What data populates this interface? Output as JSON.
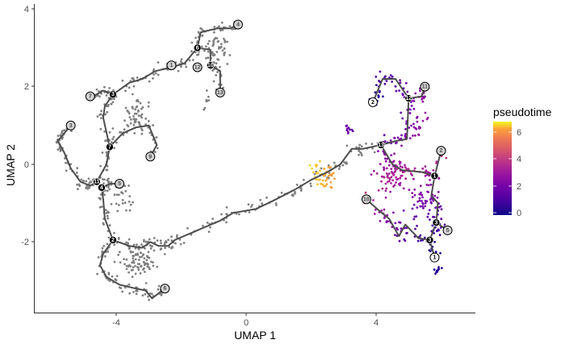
{
  "chart_data": {
    "type": "scatter",
    "title": "",
    "xlabel": "UMAP 1",
    "ylabel": "UMAP 2",
    "xlim": [
      -6.5,
      7
    ],
    "ylim": [
      -3.8,
      4.1
    ],
    "x_ticks": [
      -4,
      0,
      4
    ],
    "y_ticks": [
      -2,
      0,
      2,
      4
    ],
    "grid": false,
    "legend": {
      "title": "pseudotime",
      "type": "colorbar",
      "position": "right",
      "range": [
        0,
        6.8
      ],
      "ticks": [
        0,
        2,
        4,
        6
      ],
      "colors": [
        "#0d0887",
        "#6a00a8",
        "#b12a90",
        "#e16462",
        "#fca636",
        "#f0f921"
      ]
    },
    "series": [
      {
        "name": "uncolored cells (grey)",
        "color": "#7f7f7f",
        "region": "left trajectory, UMAP1 -6..1"
      },
      {
        "name": "colored by pseudotime",
        "region": "right trajectory, UMAP1 1.5..6.3"
      }
    ],
    "trajectory_nodes": {
      "grey_labels": [
        {
          "label": "1",
          "x": -2.3,
          "y": 2.55,
          "kind": "leaf"
        },
        {
          "label": "4",
          "x": -0.25,
          "y": 3.6,
          "kind": "leaf"
        },
        {
          "label": "12",
          "x": -1.5,
          "y": 2.5,
          "kind": "leaf"
        },
        {
          "label": "13",
          "x": -0.8,
          "y": 1.85,
          "kind": "leaf"
        },
        {
          "label": "7",
          "x": -4.8,
          "y": 1.75,
          "kind": "leaf"
        },
        {
          "label": "3",
          "x": -5.4,
          "y": 1.0,
          "kind": "leaf"
        },
        {
          "label": "9",
          "x": -2.95,
          "y": 0.2,
          "kind": "leaf"
        },
        {
          "label": "5",
          "x": -3.9,
          "y": -0.5,
          "kind": "leaf"
        },
        {
          "label": "6",
          "x": -2.5,
          "y": -3.2,
          "kind": "leaf"
        },
        {
          "label": "11",
          "x": 5.5,
          "y": 2.0,
          "kind": "leaf"
        },
        {
          "label": "2",
          "x": 6.0,
          "y": 0.35,
          "kind": "leaf"
        },
        {
          "label": "5",
          "x": 6.2,
          "y": -1.7,
          "kind": "leaf"
        },
        {
          "label": "10",
          "x": 3.7,
          "y": -0.9,
          "kind": "leaf"
        }
      ],
      "white_labels": [
        {
          "label": "2",
          "x": 3.9,
          "y": 1.6,
          "kind": "root"
        },
        {
          "label": "1",
          "x": 5.8,
          "y": -2.4,
          "kind": "root"
        }
      ],
      "black_labels": [
        {
          "label": "6",
          "x": -1.5,
          "y": 3.0,
          "kind": "branch"
        },
        {
          "label": "10",
          "x": -1.1,
          "y": 2.55,
          "kind": "branch"
        },
        {
          "label": "3",
          "x": -4.1,
          "y": 1.8,
          "kind": "branch"
        },
        {
          "label": "7",
          "x": -4.2,
          "y": 0.45,
          "kind": "branch"
        },
        {
          "label": "11",
          "x": -4.6,
          "y": -0.45,
          "kind": "branch"
        },
        {
          "label": "4",
          "x": -4.45,
          "y": -0.6,
          "kind": "branch"
        },
        {
          "label": "2",
          "x": -4.1,
          "y": -1.95,
          "kind": "branch"
        },
        {
          "label": "12",
          "x": 5.0,
          "y": 1.7,
          "kind": "branch"
        },
        {
          "label": "13",
          "x": 4.15,
          "y": 0.5,
          "kind": "branch"
        },
        {
          "label": "1",
          "x": 5.8,
          "y": -0.3,
          "kind": "branch"
        },
        {
          "label": "3",
          "x": 5.85,
          "y": -1.5,
          "kind": "branch"
        },
        {
          "label": "3",
          "x": 5.65,
          "y": -1.95,
          "kind": "branch"
        }
      ]
    }
  },
  "axes": {
    "x_title": "UMAP 1",
    "y_title": "UMAP 2",
    "x_tick_labels": [
      "-4",
      "0",
      "4"
    ],
    "y_tick_labels": [
      "4",
      "2",
      "0",
      "-2"
    ]
  },
  "legend": {
    "title": "pseudotime",
    "tick_labels": [
      "6",
      "4",
      "2",
      "0"
    ]
  }
}
